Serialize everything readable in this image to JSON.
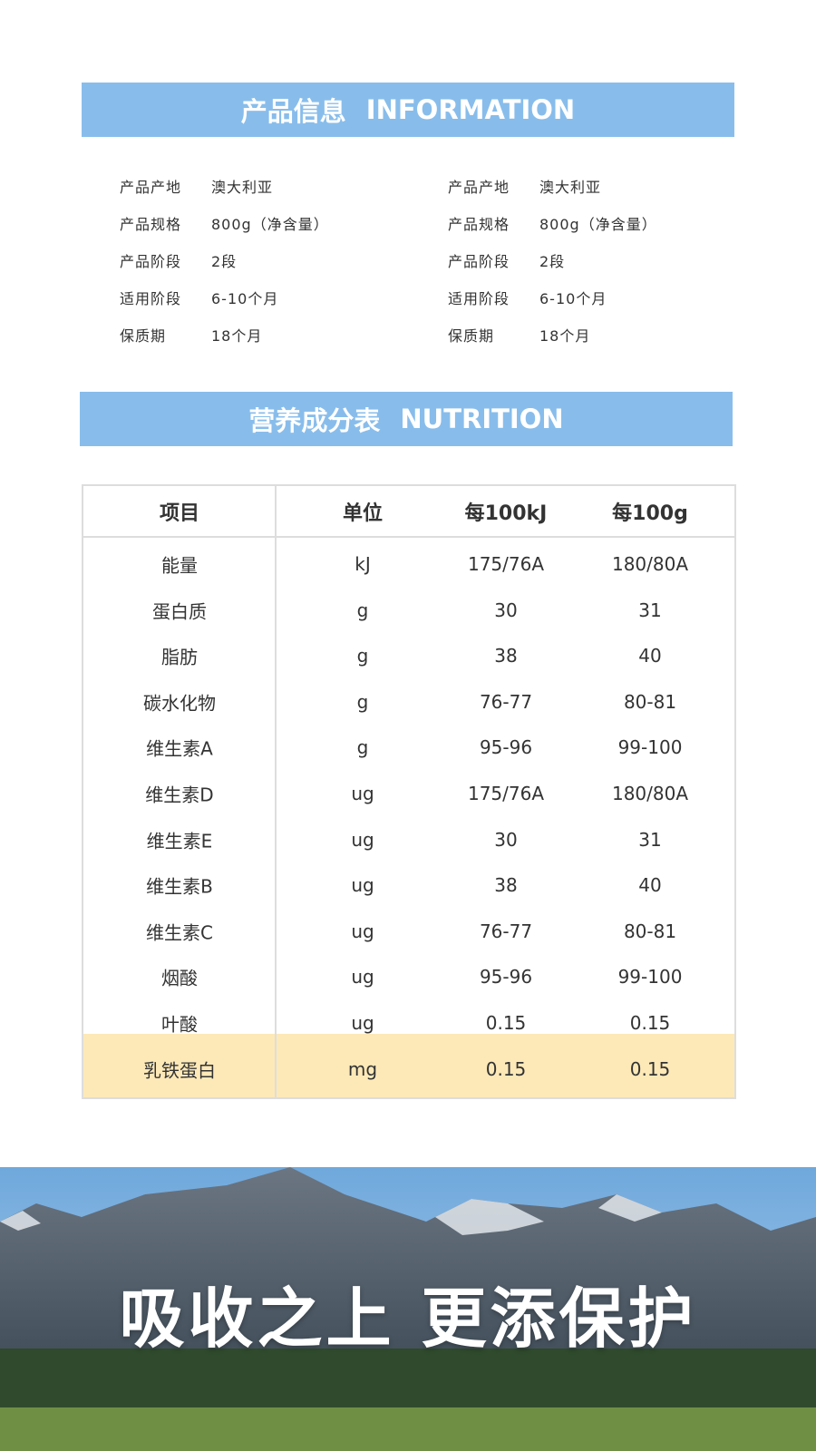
{
  "info": {
    "title": "产品信息",
    "title_en": "INFORMATION",
    "columns": [
      [
        {
          "label": "产品产地",
          "value": "澳大利亚"
        },
        {
          "label": "产品规格",
          "value": "800g（净含量）"
        },
        {
          "label": "产品阶段",
          "value": "2段"
        },
        {
          "label": "适用阶段",
          "value": "6-10个月"
        },
        {
          "label": "保质期",
          "value": "18个月"
        }
      ],
      [
        {
          "label": "产品产地",
          "value": "澳大利亚"
        },
        {
          "label": "产品规格",
          "value": "800g（净含量）"
        },
        {
          "label": "产品阶段",
          "value": "2段"
        },
        {
          "label": "适用阶段",
          "value": "6-10个月"
        },
        {
          "label": "保质期",
          "value": "18个月"
        }
      ]
    ]
  },
  "nutrition": {
    "title": "营养成分表",
    "title_en": "NUTRITION",
    "header": [
      "项目",
      "单位",
      "每100kJ",
      "每100g"
    ],
    "rows": [
      [
        "能量",
        "kJ",
        "175/76A",
        "180/80A"
      ],
      [
        "蛋白质",
        "g",
        "30",
        "31"
      ],
      [
        "脂肪",
        "g",
        "38",
        "40"
      ],
      [
        "碳水化物",
        "g",
        "76-77",
        "80-81"
      ],
      [
        "维生素A",
        "g",
        "95-96",
        "99-100"
      ],
      [
        "维生素D",
        "ug",
        "175/76A",
        "180/80A"
      ],
      [
        "维生素E",
        "ug",
        "30",
        "31"
      ],
      [
        "维生素B",
        "ug",
        "38",
        "40"
      ],
      [
        "维生素C",
        "ug",
        "76-77",
        "80-81"
      ],
      [
        "烟酸",
        "ug",
        "95-96",
        "99-100"
      ],
      [
        "叶酸",
        "ug",
        "0.15",
        "0.15"
      ],
      [
        "乳铁蛋白",
        "mg",
        "0.15",
        "0.15"
      ]
    ]
  },
  "banner": {
    "slogan": "吸收之上 更添保护"
  }
}
